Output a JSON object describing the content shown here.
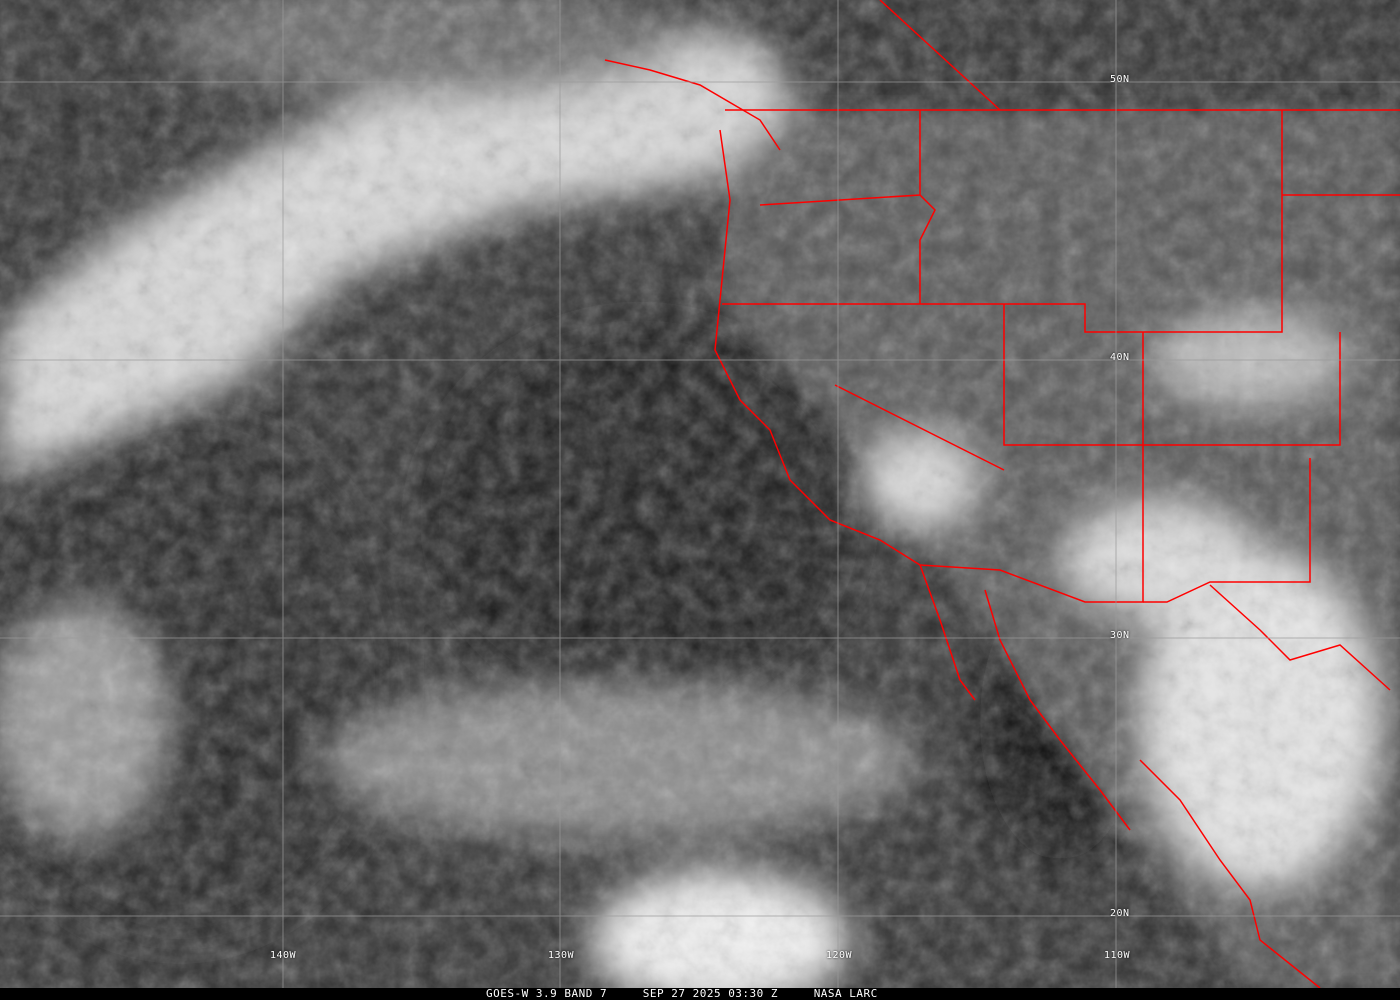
{
  "map": {
    "lat_labels": [
      "50N",
      "40N",
      "30N",
      "20N"
    ],
    "lon_labels": [
      "140W",
      "130W",
      "120W",
      "110W"
    ],
    "border_color": "#ff0000",
    "grid_color": "#9a9a9a"
  },
  "caption": {
    "satellite": "GOES-W 3.9 BAND 7",
    "timestamp": "SEP 27 2025 03:30 Z",
    "source": "NASA LARC"
  }
}
